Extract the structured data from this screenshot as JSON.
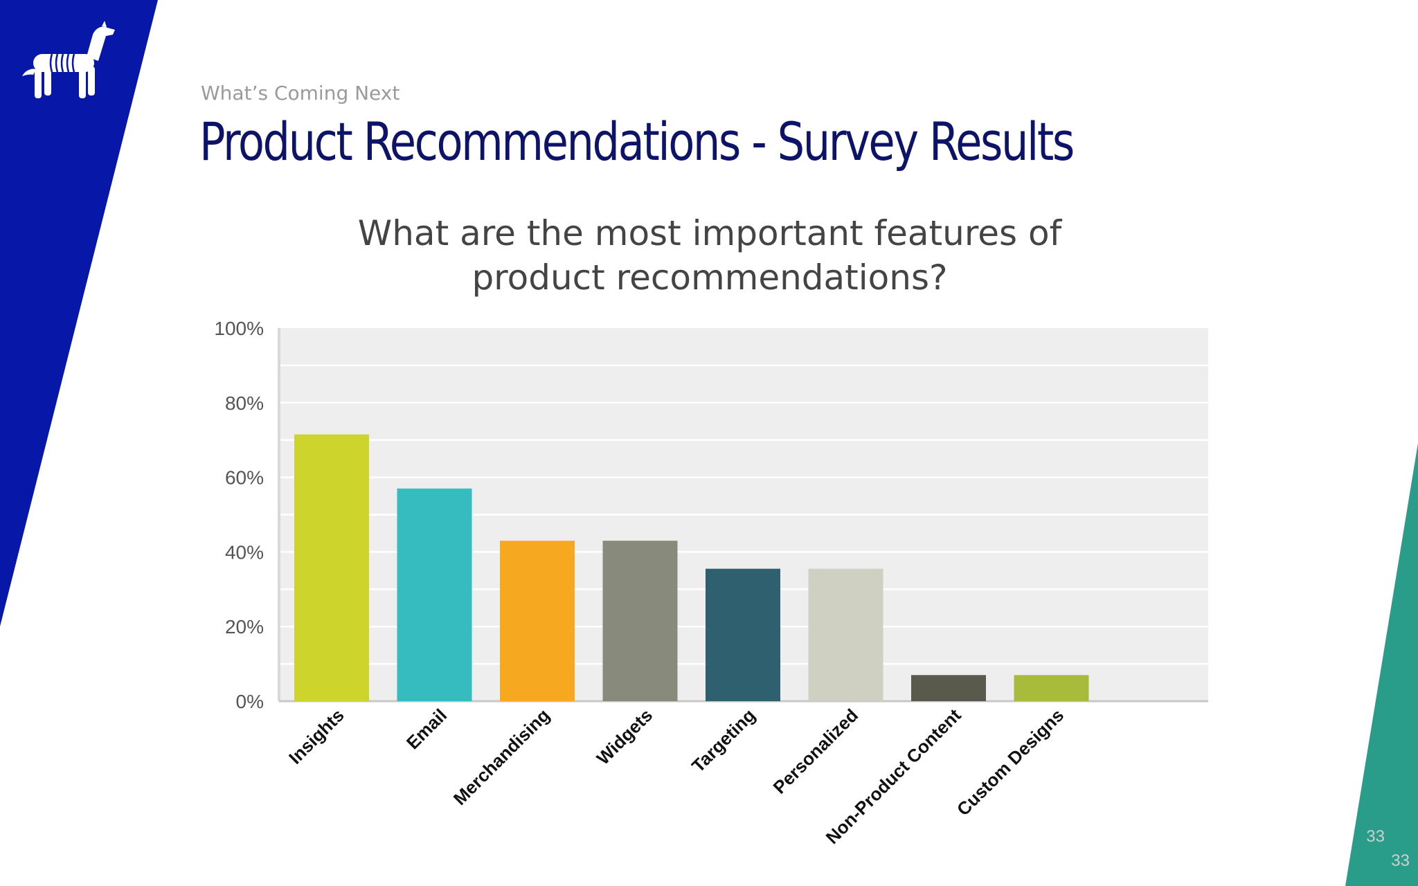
{
  "slide": {
    "kicker": "What’s Coming Next",
    "title": "Product Recommendations - Survey Results",
    "question_lines": [
      "What are the most important features of",
      "product recommendations?"
    ],
    "page_number_1": "33",
    "page_number_2": "33"
  },
  "theme": {
    "brand_blue": "#0717a8",
    "title_color": "#0d1368",
    "teal": "#2a9d8a",
    "plot_background": "#efeeee"
  },
  "logo": {
    "icon": "dog-icon"
  },
  "chart_data": {
    "type": "bar",
    "categories": [
      "Insights",
      "Email",
      "Merchandising",
      "Widgets",
      "Targeting",
      "Personalized",
      "Non-Product Content",
      "Custom Designs"
    ],
    "values": [
      71.5,
      57,
      43,
      43,
      35.5,
      35.5,
      7,
      7
    ],
    "colors": [
      "#cdd42b",
      "#36bbbf",
      "#f6a820",
      "#888a7b",
      "#2e6070",
      "#cfcfc2",
      "#5a5a4c",
      "#a8bb3b"
    ],
    "ylim": [
      0,
      100
    ],
    "ytick_labels": [
      "0%",
      "20%",
      "40%",
      "60%",
      "80%",
      "100%"
    ],
    "title": "",
    "xlabel": "",
    "ylabel": "",
    "grid": true,
    "legend": "none"
  }
}
